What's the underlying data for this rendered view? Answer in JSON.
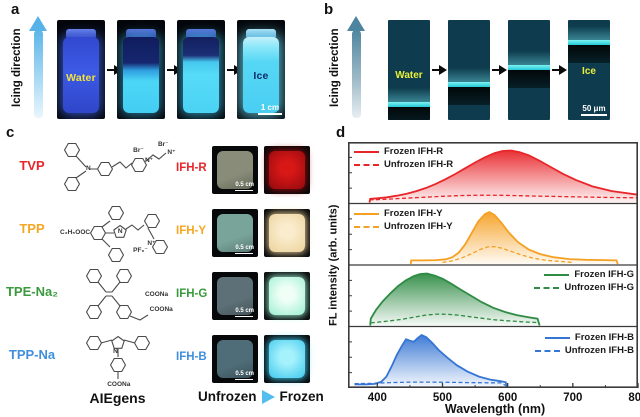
{
  "figure_labels": {
    "a": "a",
    "b": "b",
    "c": "c",
    "d": "d"
  },
  "panel_a": {
    "direction_label": "Icing direction",
    "photos": [
      {
        "caption": "Water"
      },
      {
        "caption": ""
      },
      {
        "caption": ""
      },
      {
        "caption": "Ice"
      }
    ],
    "caption_color_water": "#f2e43c",
    "caption_color_ice": "#0d2f66",
    "scale_bar": "1 cm"
  },
  "panel_b": {
    "direction_label": "Icing direction",
    "images": [
      {
        "caption": "Water",
        "band_position": 0.82
      },
      {
        "caption": "",
        "band_position": 0.62
      },
      {
        "caption": "",
        "band_position": 0.45
      },
      {
        "caption": "Ice",
        "band_position": 0.2
      }
    ],
    "caption_color": "#e8ef38",
    "scale_bar": "50 μm"
  },
  "panel_c": {
    "rows": [
      {
        "aiegen": "TVP",
        "hydrogel": "IFH-R",
        "color": "#e8262a",
        "annotations": [
          "N",
          "Br⁻",
          "N⁺",
          "Br⁻",
          "N⁺"
        ],
        "unfrozen_fill": "#888c78",
        "frozen_center": "#d81717",
        "frozen_edge": "#930a0e"
      },
      {
        "aiegen": "TPP",
        "hydrogel": "IFH-Y",
        "color": "#f5a623",
        "annotations": [
          "C₂H₅OOC",
          "N",
          "PF₆⁻",
          "N⁺"
        ],
        "unfrozen_fill": "#79a49a",
        "frozen_center": "#faeccd",
        "frozen_edge": "#ecd29a"
      },
      {
        "aiegen": "TPE-Na₂",
        "hydrogel": "IFH-G",
        "color": "#3a9a3d",
        "annotations": [
          "COONa",
          "COONa"
        ],
        "unfrozen_fill": "#5d7077",
        "frozen_center": "#f0fff6",
        "frozen_edge": "#9df0d3"
      },
      {
        "aiegen": "TPP-Na",
        "hydrogel": "IFH-B",
        "color": "#3f8fdc",
        "annotations": [
          "N",
          "COONa"
        ],
        "unfrozen_fill": "#4f6d78",
        "frozen_center": "#a6f2fc",
        "frozen_edge": "#3fc8ec"
      }
    ],
    "scale_bar": "0.5 cm",
    "footer": "AIEgens",
    "transition_left": "Unfrozen",
    "transition_right": "Frozen"
  },
  "chart_data": {
    "type": "area",
    "xlabel": "Wavelength (nm)",
    "ylabel": "FL intensity (arb. units)",
    "xlim": [
      355,
      800
    ],
    "xticks": [
      400,
      500,
      600,
      700,
      800
    ],
    "xticks_minor": [
      450,
      550,
      650,
      750
    ],
    "grid": false,
    "panels": [
      {
        "id": "IFH-R",
        "color": "#e8262a",
        "legend_position": "top-left",
        "series": [
          {
            "name": "Frozen IFH-R",
            "style": "solid",
            "x": [
              388,
              389,
              400,
              415,
              430,
              445,
              460,
              475,
              490,
              505,
              520,
              535,
              550,
              565,
              580,
              592,
              605,
              618,
              632,
              648,
              665,
              685,
              705,
              730,
              760,
              800
            ],
            "y": [
              0,
              0.07,
              0.08,
              0.1,
              0.13,
              0.17,
              0.22,
              0.28,
              0.36,
              0.45,
              0.55,
              0.66,
              0.77,
              0.87,
              0.95,
              0.99,
              1.0,
              0.97,
              0.91,
              0.81,
              0.69,
              0.55,
              0.43,
              0.31,
              0.22,
              0.15
            ]
          },
          {
            "name": "Unfrozen IFH-R",
            "style": "dashed",
            "x": [
              388,
              410,
              440,
              470,
              500,
              530,
              560,
              590,
              620,
              650,
              680,
              710,
              740,
              770,
              800
            ],
            "y": [
              0.05,
              0.06,
              0.08,
              0.1,
              0.12,
              0.135,
              0.14,
              0.138,
              0.13,
              0.122,
              0.115,
              0.108,
              0.1,
              0.095,
              0.09
            ]
          }
        ]
      },
      {
        "id": "IFH-Y",
        "color": "#f5a023",
        "legend_position": "top-left",
        "series": [
          {
            "name": "Frozen IFH-Y",
            "style": "solid",
            "x": [
              451,
              452,
              470,
              490,
              505,
              515,
              525,
              535,
              545,
              555,
              565,
              572,
              580,
              590,
              602,
              616,
              632,
              650,
              670,
              695,
              720,
              750,
              767,
              769
            ],
            "y": [
              0,
              0.07,
              0.07,
              0.075,
              0.09,
              0.13,
              0.22,
              0.38,
              0.6,
              0.82,
              0.96,
              1.0,
              0.94,
              0.8,
              0.6,
              0.42,
              0.28,
              0.19,
              0.13,
              0.095,
              0.08,
              0.075,
              0.07,
              0
            ]
          },
          {
            "name": "Unfrozen IFH-Y",
            "style": "dashed",
            "x": [
              500,
              515,
              530,
              545,
              558,
              570,
              580,
              592,
              606,
              622,
              640,
              660,
              680,
              700
            ],
            "y": [
              0.03,
              0.06,
              0.12,
              0.2,
              0.28,
              0.33,
              0.335,
              0.3,
              0.24,
              0.17,
              0.11,
              0.07,
              0.05,
              0.03
            ]
          }
        ]
      },
      {
        "id": "IFH-G",
        "color": "#2e8b44",
        "legend_position": "top-right",
        "series": [
          {
            "name": "Frozen IFH-G",
            "style": "solid",
            "x": [
              389,
              390,
              398,
              408,
              420,
              432,
              444,
              456,
              466,
              476,
              488,
              500,
              514,
              528,
              544,
              560,
              578,
              596,
              614,
              632,
              646,
              649
            ],
            "y": [
              0,
              0.13,
              0.3,
              0.46,
              0.62,
              0.76,
              0.87,
              0.95,
              0.99,
              1.0,
              0.96,
              0.9,
              0.8,
              0.69,
              0.57,
              0.45,
              0.34,
              0.26,
              0.2,
              0.16,
              0.13,
              0
            ]
          },
          {
            "name": "Unfrozen IFH-G",
            "style": "dashed",
            "x": [
              390,
              405,
              420,
              438,
              456,
              474,
              492,
              508,
              524,
              542,
              560,
              580,
              600,
              625,
              648
            ],
            "y": [
              0.05,
              0.07,
              0.09,
              0.12,
              0.16,
              0.2,
              0.22,
              0.215,
              0.2,
              0.17,
              0.14,
              0.11,
              0.09,
              0.07,
              0.055
            ]
          }
        ]
      },
      {
        "id": "IFH-B",
        "color": "#3575d3",
        "legend_position": "top-right",
        "series": [
          {
            "name": "Frozen IFH-B",
            "style": "solid",
            "x": [
              365,
              382,
              396,
              406,
              414,
              422,
              430,
              438,
              444,
              450,
              456,
              462,
              468,
              475,
              484,
              495,
              508,
              522,
              538,
              556,
              574,
              590,
              597,
              599
            ],
            "y": [
              0.05,
              0.05,
              0.06,
              0.1,
              0.2,
              0.4,
              0.62,
              0.8,
              0.92,
              0.89,
              0.87,
              0.94,
              1.0,
              0.96,
              0.85,
              0.7,
              0.56,
              0.42,
              0.3,
              0.2,
              0.14,
              0.11,
              0.09,
              0
            ]
          },
          {
            "name": "Unfrozen IFH-B",
            "style": "dashed",
            "x": [
              365,
              390,
              420,
              450,
              480,
              510,
              540,
              570,
              590,
              598
            ],
            "y": [
              0.065,
              0.07,
              0.085,
              0.095,
              0.095,
              0.09,
              0.085,
              0.08,
              0.078,
              0.02
            ]
          }
        ]
      }
    ]
  }
}
